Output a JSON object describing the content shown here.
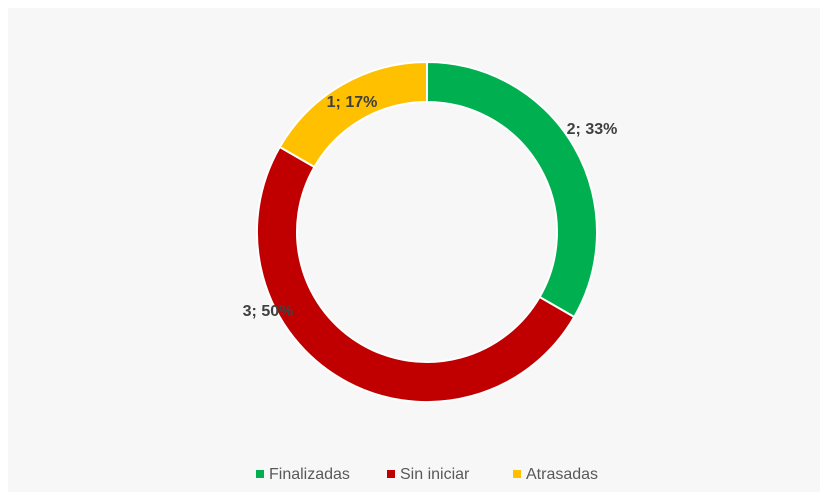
{
  "chart_data": {
    "type": "donut",
    "categories": [
      "Finalizadas",
      "Sin iniciar",
      "Atrasadas"
    ],
    "values": [
      2,
      3,
      1
    ],
    "value_labels": [
      "2; 33%",
      "3; 50%",
      "1; 17%"
    ],
    "colors": [
      "#00b050",
      "#c00000",
      "#ffc000"
    ],
    "legend": "bottom"
  }
}
